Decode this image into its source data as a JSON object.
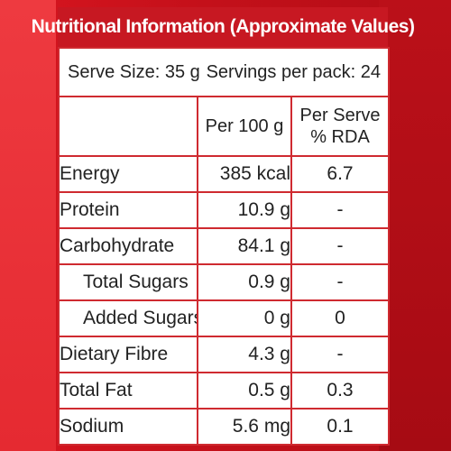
{
  "title": "Nutritional Information (Approximate Values)",
  "serve_size": "Serve Size: 35 g",
  "servings": "Servings per pack: 24",
  "columns": {
    "per100": "Per 100 g",
    "per_serve_line1": "Per Serve",
    "per_serve_line2": "% RDA"
  },
  "rows": [
    {
      "name": "Energy",
      "per100": "385 kcal",
      "rda": "6.7"
    },
    {
      "name": "Protein",
      "per100": "10.9 g",
      "rda": "-"
    },
    {
      "name": "Carbohydrate",
      "per100": "84.1 g",
      "rda": "-"
    },
    {
      "name": "Total Sugars",
      "per100": "0.9 g",
      "rda": "-"
    },
    {
      "name": "Added Sugars",
      "per100": "0 g",
      "rda": "0"
    },
    {
      "name": "Dietary Fibre",
      "per100": "4.3 g",
      "rda": "-"
    },
    {
      "name": "Total Fat",
      "per100": "0.5 g",
      "rda": "0.3"
    },
    {
      "name": "Sodium",
      "per100": "5.6 mg",
      "rda": "0.1"
    }
  ],
  "colors": {
    "accent": "#c71822",
    "border": "#cf2a30",
    "text": "#222222"
  }
}
